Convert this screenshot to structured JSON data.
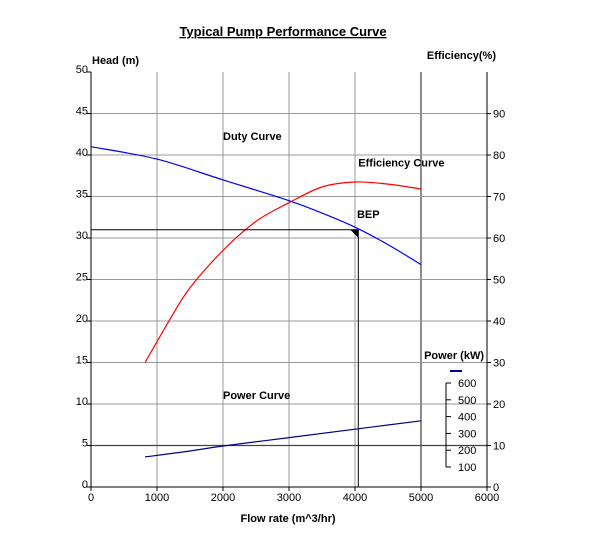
{
  "chart_data": {
    "type": "line",
    "title": "Typical Pump Performance Curve",
    "xlabel": "Flow rate (m^3/hr)",
    "ylabel_left": "Head (m)",
    "ylabel_right": "Efficiency(%)",
    "xlim": [
      0,
      6000
    ],
    "ylim_left": [
      0,
      50
    ],
    "ylim_right": [
      0,
      100
    ],
    "x_ticks": [
      "0",
      "1000",
      "2000",
      "3000",
      "4000",
      "5000",
      "6000"
    ],
    "y_left_ticks": [
      "0",
      "5",
      "10",
      "15",
      "20",
      "25",
      "30",
      "35",
      "40",
      "45",
      "50"
    ],
    "y_right_ticks": [
      "0",
      "10",
      "20",
      "30",
      "40",
      "50",
      "60",
      "70",
      "80",
      "90"
    ],
    "grid": true,
    "series": [
      {
        "name": "Duty Curve",
        "axis": "left",
        "color": "#0000ff",
        "points": [
          [
            0,
            41.0
          ],
          [
            1000,
            39.5
          ],
          [
            2000,
            37.0
          ],
          [
            3000,
            34.5
          ],
          [
            3500,
            33.0
          ],
          [
            4000,
            31.3
          ],
          [
            4500,
            29.2
          ],
          [
            5000,
            26.8
          ]
        ]
      },
      {
        "name": "Efficiency Curve",
        "axis": "right",
        "color": "#ff0000",
        "points": [
          [
            820,
            30
          ],
          [
            1200,
            40.5
          ],
          [
            1500,
            48
          ],
          [
            2000,
            57
          ],
          [
            2500,
            64
          ],
          [
            3000,
            68.5
          ],
          [
            3500,
            72.3
          ],
          [
            4000,
            73.5
          ],
          [
            4500,
            73
          ],
          [
            5000,
            71.8
          ]
        ]
      },
      {
        "name": "Power Curve",
        "axis": "power",
        "color": "#00008b",
        "points": [
          [
            820,
            160
          ],
          [
            1500,
            195
          ],
          [
            2000,
            225
          ],
          [
            3000,
            275
          ],
          [
            4000,
            325
          ],
          [
            5000,
            375
          ]
        ]
      }
    ],
    "bep": {
      "label": "BEP",
      "flow": 4050,
      "head": 31
    },
    "power_axis": {
      "label": "Power (kW)",
      "ticks": [
        "100",
        "200",
        "300",
        "400",
        "500",
        "600"
      ],
      "legend_color": "#00008b"
    },
    "baseline_head": 5,
    "curve_labels": {
      "duty": "Duty Curve",
      "efficiency": "Efficiency Curve",
      "power": "Power Curve"
    }
  }
}
